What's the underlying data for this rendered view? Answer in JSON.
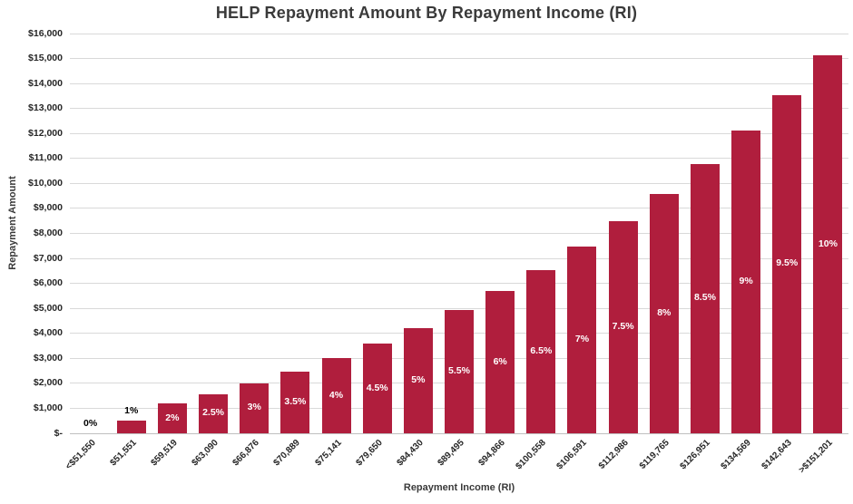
{
  "chart_data": {
    "type": "bar",
    "title": "HELP Repayment Amount By Repayment Income (RI)",
    "xlabel": "Repayment Income (RI)",
    "ylabel": "Repayment Amount",
    "categories": [
      "<$51,550",
      "$51,551",
      "$59,519",
      "$63,090",
      "$66,876",
      "$70,889",
      "$75,141",
      "$79,650",
      "$84,430",
      "$89,495",
      "$94,866",
      "$100,558",
      "$106,591",
      "$112,986",
      "$119,765",
      "$126,951",
      "$134,569",
      "$142,643",
      ">$151,201"
    ],
    "values": [
      0,
      516,
      1190,
      1577,
      2006,
      2481,
      3006,
      3584,
      4222,
      4922,
      5692,
      6536,
      7461,
      8474,
      9581,
      10791,
      12111,
      13551,
      15120
    ],
    "bar_labels": [
      "0%",
      "1%",
      "2%",
      "2.5%",
      "3%",
      "3.5%",
      "4%",
      "4.5%",
      "5%",
      "5.5%",
      "6%",
      "6.5%",
      "7%",
      "7.5%",
      "8%",
      "8.5%",
      "9%",
      "9.5%",
      "10%"
    ],
    "ylim": [
      0,
      16000
    ],
    "ytick_step": 1000,
    "ytick_labels": [
      "$-",
      "$1,000",
      "$2,000",
      "$3,000",
      "$4,000",
      "$5,000",
      "$6,000",
      "$7,000",
      "$8,000",
      "$9,000",
      "$10,000",
      "$11,000",
      "$12,000",
      "$13,000",
      "$14,000",
      "$15,000",
      "$16,000"
    ],
    "bar_color": "#B01E3D",
    "gridline_color": "#D9D9D9",
    "axis_line_color": "#BFBFBF",
    "inside_label_color": "#FFFFFF",
    "outside_label_color": "#000000",
    "grid": true,
    "legend_position": "none"
  }
}
